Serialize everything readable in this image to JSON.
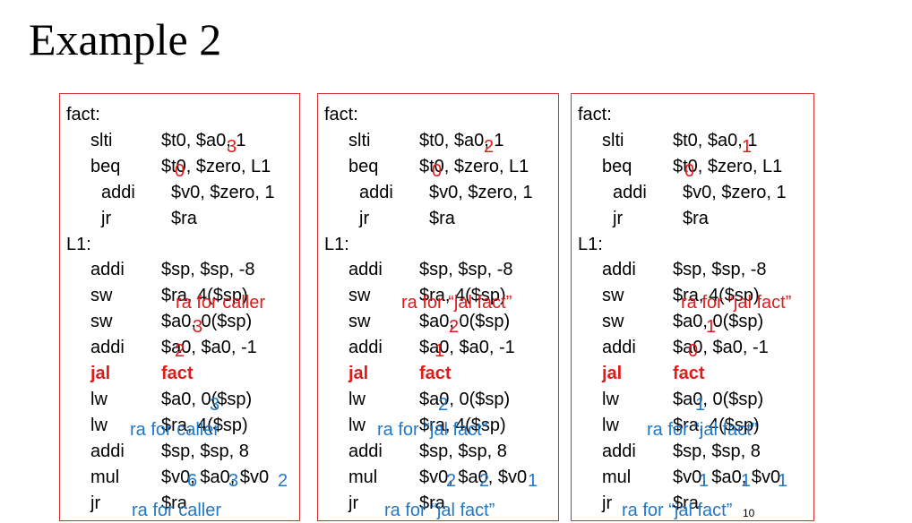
{
  "title": "Example 2",
  "page_number": "10",
  "colors": {
    "frame": "#d2302f",
    "red": "#e01b1b",
    "blue": "#1f78c8"
  },
  "panels": [
    {
      "lines": [
        {
          "label": "fact:"
        },
        {
          "op": "slti",
          "args": "$t0, $a0, 1"
        },
        {
          "op": "beq",
          "args": "$t0, $zero, L1"
        },
        {
          "op": "addi",
          "args": "$v0, $zero, 1",
          "indent": true
        },
        {
          "op": "jr",
          "args": "$ra",
          "indent": true
        },
        {
          "label": "L1:"
        },
        {
          "op": "addi",
          "args": "$sp, $sp, -8"
        },
        {
          "op": "sw",
          "args": "$ra, 4($sp)"
        },
        {
          "op": "sw",
          "args": "$a0, 0($sp)"
        },
        {
          "op": "addi",
          "args": "$a0, $a0, -1"
        },
        {
          "op": "jal",
          "args": "fact",
          "highlight": true
        },
        {
          "op": "lw",
          "args": "$a0, 0($sp)"
        },
        {
          "op": "lw",
          "args": "$ra, 4($sp)"
        },
        {
          "op": "addi",
          "args": "$sp, $sp, 8"
        },
        {
          "op": "mul",
          "args": "$v0, $a0, $v0"
        },
        {
          "op": "jr",
          "args": "$ra"
        }
      ],
      "annotations": [
        {
          "text": "3",
          "color": "red"
        },
        {
          "text": "0",
          "color": "red"
        },
        {
          "text": "ra for caller",
          "color": "red"
        },
        {
          "text": "3",
          "color": "red"
        },
        {
          "text": "2",
          "color": "red"
        },
        {
          "text": "3",
          "color": "blue"
        },
        {
          "text": "ra for caller",
          "color": "blue"
        },
        {
          "text": "6",
          "color": "blue"
        },
        {
          "text": "3",
          "color": "blue"
        },
        {
          "text": "2",
          "color": "blue"
        },
        {
          "text": "ra for caller",
          "color": "blue"
        }
      ]
    },
    {
      "lines": [
        {
          "label": "fact:"
        },
        {
          "op": "slti",
          "args": "$t0, $a0, 1"
        },
        {
          "op": "beq",
          "args": "$t0, $zero, L1"
        },
        {
          "op": "addi",
          "args": "$v0, $zero, 1",
          "indent": true
        },
        {
          "op": "jr",
          "args": "$ra",
          "indent": true
        },
        {
          "label": "L1:"
        },
        {
          "op": "addi",
          "args": "$sp, $sp, -8"
        },
        {
          "op": "sw",
          "args": "$ra, 4($sp)"
        },
        {
          "op": "sw",
          "args": "$a0, 0($sp)"
        },
        {
          "op": "addi",
          "args": "$a0, $a0, -1"
        },
        {
          "op": "jal",
          "args": "fact",
          "highlight": true
        },
        {
          "op": "lw",
          "args": "$a0, 0($sp)"
        },
        {
          "op": "lw",
          "args": "$ra, 4($sp)"
        },
        {
          "op": "addi",
          "args": "$sp, $sp, 8"
        },
        {
          "op": "mul",
          "args": "$v0, $a0, $v0"
        },
        {
          "op": "jr",
          "args": "$ra"
        }
      ],
      "annotations": [
        {
          "text": "2",
          "color": "red"
        },
        {
          "text": "0",
          "color": "red"
        },
        {
          "text": "ra for “jal fact”",
          "color": "red"
        },
        {
          "text": "2",
          "color": "red"
        },
        {
          "text": "1",
          "color": "red"
        },
        {
          "text": "2",
          "color": "blue"
        },
        {
          "text": "ra for “jal fact”",
          "color": "blue"
        },
        {
          "text": "2",
          "color": "blue"
        },
        {
          "text": "2",
          "color": "blue"
        },
        {
          "text": "1",
          "color": "blue"
        },
        {
          "text": "ra for “jal fact”",
          "color": "blue"
        }
      ]
    },
    {
      "lines": [
        {
          "label": "fact:"
        },
        {
          "op": "slti",
          "args": "$t0, $a0, 1"
        },
        {
          "op": "beq",
          "args": "$t0, $zero, L1"
        },
        {
          "op": "addi",
          "args": "$v0, $zero, 1",
          "indent": true
        },
        {
          "op": "jr",
          "args": "$ra",
          "indent": true
        },
        {
          "label": "L1:"
        },
        {
          "op": "addi",
          "args": "$sp, $sp, -8"
        },
        {
          "op": "sw",
          "args": "$ra, 4($sp)"
        },
        {
          "op": "sw",
          "args": "$a0, 0($sp)"
        },
        {
          "op": "addi",
          "args": "$a0, $a0, -1"
        },
        {
          "op": "jal",
          "args": "fact",
          "highlight": true
        },
        {
          "op": "lw",
          "args": "$a0, 0($sp)"
        },
        {
          "op": "lw",
          "args": "$ra, 4($sp)"
        },
        {
          "op": "addi",
          "args": "$sp, $sp, 8"
        },
        {
          "op": "mul",
          "args": "$v0, $a0, $v0"
        },
        {
          "op": "jr",
          "args": "$ra"
        }
      ],
      "annotations": [
        {
          "text": "1",
          "color": "red"
        },
        {
          "text": "0",
          "color": "red"
        },
        {
          "text": "ra for “jal fact”",
          "color": "red"
        },
        {
          "text": "1",
          "color": "red"
        },
        {
          "text": "0",
          "color": "red"
        },
        {
          "text": "1",
          "color": "blue"
        },
        {
          "text": "ra for “jal fact”",
          "color": "blue"
        },
        {
          "text": "1",
          "color": "blue"
        },
        {
          "text": "1",
          "color": "blue"
        },
        {
          "text": "1",
          "color": "blue"
        },
        {
          "text": "ra for “jal fact”",
          "color": "blue"
        }
      ]
    }
  ]
}
